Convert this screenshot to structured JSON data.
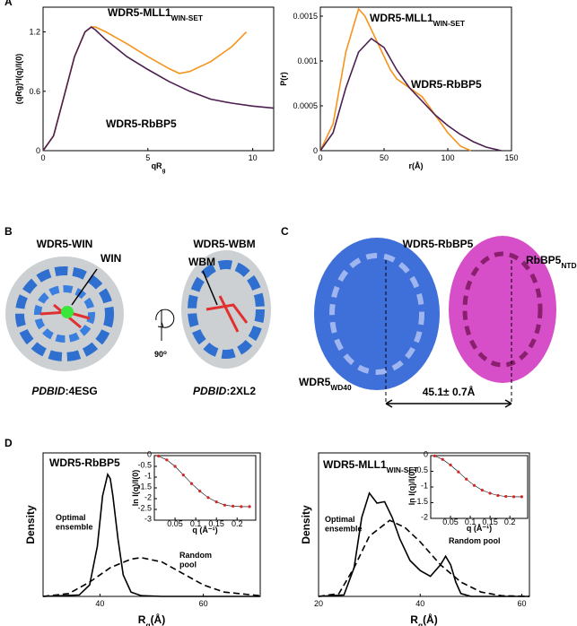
{
  "chart_data": [
    {
      "type": "line",
      "panel": "A",
      "xlim": [
        0,
        11
      ],
      "ylim": [
        0,
        1.45
      ],
      "xticks": [
        0,
        5,
        10
      ],
      "yticks": [
        0,
        0.6,
        1.2
      ],
      "xlabel": [
        {
          "t": "qR"
        },
        {
          "t": "g",
          "sub": true
        }
      ],
      "ylabel": "(qRg)²I(q)/I(0)",
      "series": [
        {
          "name": [
            {
              "t": "WDR5-MLL1"
            },
            {
              "t": "WIN-SET",
              "sub": true
            }
          ],
          "color": "#f7941d",
          "x": [
            0,
            0.5,
            1,
            1.5,
            2,
            2.3,
            2.5,
            3,
            4,
            5,
            6,
            6.5,
            7,
            8,
            9,
            9.7
          ],
          "values": [
            0,
            0.15,
            0.55,
            0.95,
            1.2,
            1.25,
            1.25,
            1.2,
            1.08,
            0.95,
            0.83,
            0.78,
            0.8,
            0.9,
            1.05,
            1.2
          ]
        },
        {
          "name": "WDR5-RbBP5",
          "color": "#4b1f4f",
          "x": [
            0,
            0.5,
            1,
            1.5,
            2,
            2.3,
            2.5,
            3,
            4,
            5,
            6,
            7,
            8,
            9,
            10,
            11
          ],
          "values": [
            0,
            0.15,
            0.55,
            0.95,
            1.2,
            1.25,
            1.22,
            1.12,
            0.95,
            0.82,
            0.7,
            0.6,
            0.52,
            0.48,
            0.45,
            0.43
          ]
        }
      ]
    },
    {
      "type": "line",
      "xlim": [
        0,
        150
      ],
      "ylim": [
        0,
        0.0016
      ],
      "xticks": [
        0,
        50,
        100,
        150
      ],
      "yticks": [
        0,
        0.0005,
        0.001,
        0.0015
      ],
      "xlabel": "r(Å)",
      "ylabel": "P(r)",
      "series": [
        {
          "name": [
            {
              "t": "WDR5-MLL1"
            },
            {
              "t": "WIN-SET",
              "sub": true
            }
          ],
          "color": "#f7941d",
          "x": [
            0,
            10,
            20,
            30,
            35,
            45,
            55,
            60,
            70,
            80,
            90,
            100,
            110,
            118
          ],
          "values": [
            0,
            0.0003,
            0.0011,
            0.00158,
            0.0015,
            0.0012,
            0.0009,
            0.0008,
            0.0007,
            0.0006,
            0.0004,
            0.0002,
            5e-05,
            0
          ]
        },
        {
          "name": "WDR5-RbBP5",
          "color": "#4b1f4f",
          "x": [
            0,
            10,
            20,
            30,
            40,
            50,
            60,
            70,
            80,
            90,
            100,
            110,
            120,
            130,
            142
          ],
          "values": [
            0,
            0.0002,
            0.0007,
            0.0011,
            0.00125,
            0.00115,
            0.0009,
            0.0007,
            0.00055,
            0.0004,
            0.00028,
            0.00018,
            0.0001,
            4e-05,
            0
          ]
        }
      ]
    },
    {
      "type": "line",
      "panel": "D",
      "title": "WDR5-RbBP5",
      "xlim": [
        29,
        71
      ],
      "ylim": [
        0,
        1
      ],
      "xticks": [
        40,
        60
      ],
      "xlabel": [
        {
          "t": "R"
        },
        {
          "t": "g",
          "sub": true
        },
        {
          "t": "(Å)"
        }
      ],
      "ylabel": "Density",
      "series": [
        {
          "name": "Optimal ensemble",
          "color": "#000000",
          "linestyle": "solid",
          "x": [
            29,
            36,
            38,
            39.5,
            40.5,
            41.5,
            42,
            42.5,
            43.5,
            44.5,
            46,
            48,
            52,
            71
          ],
          "values": [
            0,
            0.01,
            0.08,
            0.35,
            0.7,
            0.85,
            0.82,
            0.7,
            0.4,
            0.15,
            0.03,
            0.005,
            0,
            0
          ]
        },
        {
          "name": "Random pool",
          "color": "#000000",
          "linestyle": "dashed",
          "x": [
            29,
            34,
            38,
            42,
            46,
            48,
            52,
            56,
            60,
            64,
            71
          ],
          "values": [
            0,
            0.02,
            0.1,
            0.2,
            0.26,
            0.27,
            0.24,
            0.16,
            0.08,
            0.03,
            0.005
          ]
        }
      ]
    },
    {
      "type": "line",
      "xlim": [
        0,
        0.245
      ],
      "ylim": [
        -3,
        0
      ],
      "xticks": [
        0.05,
        0.1,
        0.15,
        0.2
      ],
      "yticks": [
        0,
        -0.5,
        -1,
        -1.5,
        -2,
        -2.5,
        -3
      ],
      "xlabel": "q (Å⁻¹)",
      "ylabel": "ln I(q)/I(0)",
      "series": [
        {
          "color": "#d62728",
          "markers": true,
          "x": [
            0.01,
            0.03,
            0.05,
            0.07,
            0.09,
            0.11,
            0.13,
            0.15,
            0.17,
            0.19,
            0.21,
            0.23
          ],
          "values": [
            -0.02,
            -0.2,
            -0.5,
            -0.9,
            -1.3,
            -1.65,
            -1.95,
            -2.15,
            -2.3,
            -2.35,
            -2.37,
            -2.37
          ]
        }
      ]
    },
    {
      "type": "line",
      "title": [
        {
          "t": "WDR5-MLL1"
        },
        {
          "t": "WIN-SET",
          "sub": true
        }
      ],
      "xlim": [
        20,
        61.5
      ],
      "ylim": [
        0,
        1
      ],
      "xticks": [
        20,
        40,
        60
      ],
      "xlabel": [
        {
          "t": "R"
        },
        {
          "t": "g",
          "sub": true
        },
        {
          "t": "(Å)"
        }
      ],
      "ylabel": "Density",
      "series": [
        {
          "name": "Optimal ensemble",
          "color": "#000000",
          "linestyle": "solid",
          "x": [
            20,
            25,
            27,
            28.5,
            30,
            31.5,
            33,
            34.5,
            36,
            38,
            40,
            42,
            44,
            45,
            46,
            47,
            48,
            50,
            61.5
          ],
          "values": [
            0,
            0.01,
            0.2,
            0.55,
            0.72,
            0.65,
            0.66,
            0.55,
            0.4,
            0.25,
            0.18,
            0.14,
            0.22,
            0.28,
            0.22,
            0.1,
            0.02,
            0,
            0
          ]
        },
        {
          "name": "Random pool",
          "color": "#000000",
          "linestyle": "dashed",
          "x": [
            20,
            24,
            27,
            30,
            34,
            37,
            40,
            44,
            48,
            52,
            56,
            61.5
          ],
          "values": [
            0,
            0.02,
            0.2,
            0.42,
            0.53,
            0.48,
            0.38,
            0.22,
            0.1,
            0.03,
            0.005,
            0
          ]
        }
      ]
    },
    {
      "type": "line",
      "xlim": [
        0,
        0.245
      ],
      "ylim": [
        -2,
        0
      ],
      "xticks": [
        0.05,
        0.1,
        0.15,
        0.2
      ],
      "yticks": [
        0,
        -0.5,
        -1,
        -1.5,
        -2
      ],
      "xlabel": "q (Å⁻¹)",
      "ylabel": "ln I(q)/I(0)",
      "series": [
        {
          "color": "#d62728",
          "markers": true,
          "x": [
            0.01,
            0.03,
            0.05,
            0.07,
            0.09,
            0.11,
            0.13,
            0.15,
            0.17,
            0.19,
            0.21,
            0.23
          ],
          "values": [
            -0.01,
            -0.12,
            -0.3,
            -0.52,
            -0.75,
            -0.95,
            -1.1,
            -1.2,
            -1.27,
            -1.3,
            -1.31,
            -1.31
          ]
        }
      ]
    }
  ],
  "panel_b": {
    "label": "B",
    "left_title": "WDR5-WIN",
    "left_tag": "WIN",
    "left_id": [
      {
        "t": "PDBID",
        "i": true
      },
      {
        "t": ":4ESG"
      }
    ],
    "rotation": [
      {
        "t": "90"
      },
      {
        "t": "o",
        "sup": true
      }
    ],
    "right_title": "WDR5-WBM",
    "right_tag": "WBM",
    "right_id": [
      {
        "t": "PDBID",
        "i": true
      },
      {
        "t": ":2XL2"
      }
    ]
  },
  "panel_c": {
    "label": "C",
    "title": "WDR5-RbBP5",
    "right_name": [
      {
        "t": "RbBP5"
      },
      {
        "t": "NTD",
        "sub": true
      }
    ],
    "left_name": [
      {
        "t": "WDR5"
      },
      {
        "t": "WD40",
        "sub": true
      }
    ],
    "distance": "45.1± 0.7Å"
  }
}
